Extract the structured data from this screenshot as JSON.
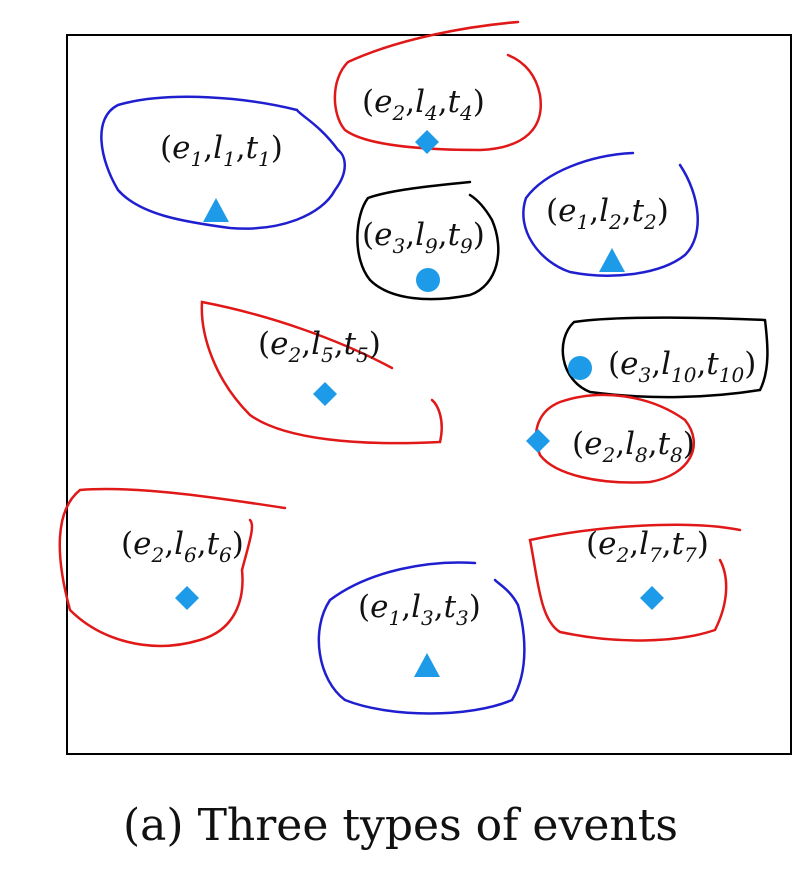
{
  "caption": "(a) Three types of events",
  "colors": {
    "e1_outline": "#1f1fd0",
    "e2_outline": "#e01818",
    "e3_outline": "#000000",
    "marker": "#1e9be8",
    "frame": "#000000"
  },
  "legend_shapes": {
    "e1": "triangle",
    "e2": "diamond",
    "e3": "circle"
  },
  "events": [
    {
      "id": "t1",
      "event": "e",
      "event_sub": "1",
      "loc": "l",
      "loc_sub": "1",
      "time": "t",
      "time_sub": "1",
      "marker": "triangle",
      "outline": "e1"
    },
    {
      "id": "t4",
      "event": "e",
      "event_sub": "2",
      "loc": "l",
      "loc_sub": "4",
      "time": "t",
      "time_sub": "4",
      "marker": "diamond",
      "outline": "e2"
    },
    {
      "id": "t9",
      "event": "e",
      "event_sub": "3",
      "loc": "l",
      "loc_sub": "9",
      "time": "t",
      "time_sub": "9",
      "marker": "circle",
      "outline": "e3"
    },
    {
      "id": "t2",
      "event": "e",
      "event_sub": "1",
      "loc": "l",
      "loc_sub": "2",
      "time": "t",
      "time_sub": "2",
      "marker": "triangle",
      "outline": "e1"
    },
    {
      "id": "t5",
      "event": "e",
      "event_sub": "2",
      "loc": "l",
      "loc_sub": "5",
      "time": "t",
      "time_sub": "5",
      "marker": "diamond",
      "outline": "e2"
    },
    {
      "id": "t10",
      "event": "e",
      "event_sub": "3",
      "loc": "l",
      "loc_sub": "10",
      "time": "t",
      "time_sub": "10",
      "marker": "circle",
      "outline": "e3"
    },
    {
      "id": "t8",
      "event": "e",
      "event_sub": "2",
      "loc": "l",
      "loc_sub": "8",
      "time": "t",
      "time_sub": "8",
      "marker": "diamond",
      "outline": "e2"
    },
    {
      "id": "t6",
      "event": "e",
      "event_sub": "2",
      "loc": "l",
      "loc_sub": "6",
      "time": "t",
      "time_sub": "6",
      "marker": "diamond",
      "outline": "e2"
    },
    {
      "id": "t7",
      "event": "e",
      "event_sub": "2",
      "loc": "l",
      "loc_sub": "7",
      "time": "t",
      "time_sub": "7",
      "marker": "diamond",
      "outline": "e2"
    },
    {
      "id": "t3",
      "event": "e",
      "event_sub": "1",
      "loc": "l",
      "loc_sub": "3",
      "time": "t",
      "time_sub": "3",
      "marker": "triangle",
      "outline": "e1"
    }
  ]
}
